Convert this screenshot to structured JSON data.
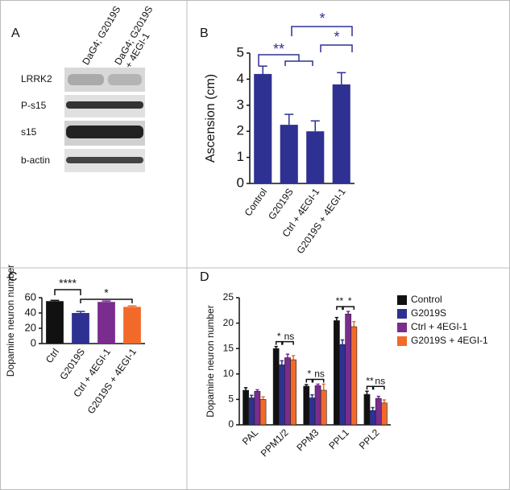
{
  "blot": {
    "panel": "A",
    "lanes": [
      [
        "DaG4; G2019S"
      ],
      [
        "DaG4; G2019S",
        "+ 4EGI-1"
      ]
    ],
    "rows": [
      "LRRK2",
      "P-s15",
      "s15",
      "b-actin"
    ]
  },
  "chart_data": [
    {
      "type": "bar",
      "panel": "B",
      "y_label": "Ascension (cm)",
      "categories": [
        "Control",
        "G2019S",
        "Ctrl + 4EGI-1",
        "G2019S + 4EGI-1"
      ],
      "values": [
        4.2,
        2.25,
        2.0,
        3.8
      ],
      "errors": [
        0.3,
        0.4,
        0.4,
        0.45
      ],
      "color": "#2e3192",
      "ylim": [
        0,
        5
      ],
      "yticks": [
        0,
        1,
        2,
        3,
        4,
        5
      ],
      "annotations": [
        "**",
        "*",
        "*"
      ]
    },
    {
      "type": "bar",
      "panel": "C",
      "y_label": "Dopamine neuron number",
      "categories": [
        "Ctrl",
        "G2019S",
        "Ctrl + 4EGI-1",
        "G2019S + 4EGI-1"
      ],
      "values": [
        55.5,
        40,
        54.5,
        48
      ],
      "errors": [
        1,
        2,
        1.2,
        1.2
      ],
      "colors": [
        "#111111",
        "#2e3192",
        "#7b2c8f",
        "#f26a2a"
      ],
      "ylim": [
        0,
        60
      ],
      "yticks": [
        0,
        20,
        40,
        60
      ],
      "annotations": [
        "****",
        "*"
      ]
    },
    {
      "type": "grouped-bar",
      "panel": "D",
      "y_label": "Dopamine neuron number",
      "categories": [
        "PAL",
        "PPM1/2",
        "PPM3",
        "PPL1",
        "PPL2"
      ],
      "series": [
        {
          "name": "Control",
          "color": "#111111",
          "values": [
            6.8,
            15,
            7.6,
            20.5,
            6.0
          ],
          "errors": [
            0.5,
            0.4,
            0.3,
            0.6,
            0.6
          ]
        },
        {
          "name": "G2019S",
          "color": "#2e3192",
          "values": [
            5.3,
            11.8,
            5.3,
            15.8,
            2.8
          ],
          "errors": [
            0.5,
            0.8,
            0.6,
            0.9,
            0.6
          ]
        },
        {
          "name": "Ctrl + 4EGI-1",
          "color": "#7b2c8f",
          "values": [
            6.6,
            13.2,
            7.7,
            21.8,
            5.2
          ],
          "errors": [
            0.3,
            0.7,
            0.3,
            0.5,
            0.4
          ]
        },
        {
          "name": "G2019S + 4EGI-1",
          "color": "#f26a2a",
          "values": [
            5.0,
            12.8,
            6.8,
            19.3,
            4.3
          ],
          "errors": [
            0.5,
            0.8,
            1.2,
            1.0,
            0.6
          ]
        }
      ],
      "ylim": [
        0,
        25
      ],
      "yticks": [
        0,
        5,
        10,
        15,
        20,
        25
      ],
      "annotations": [
        [
          "*",
          "ns"
        ],
        [
          "*",
          "ns"
        ],
        [
          "**",
          "*"
        ],
        [
          "**",
          "ns"
        ]
      ]
    }
  ]
}
